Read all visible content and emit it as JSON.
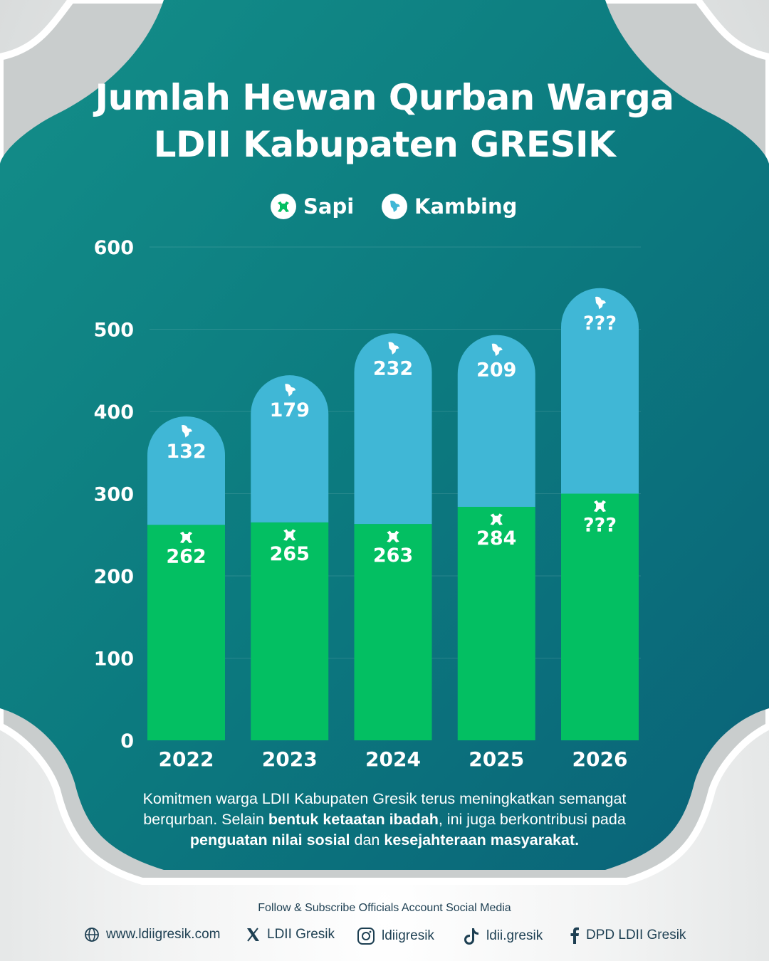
{
  "title_line1": "Jumlah Hewan Qurban Warga",
  "title_line2": "LDII Kabupaten GRESIK",
  "legend": {
    "sapi": "Sapi",
    "kambing": "Kambing"
  },
  "colors": {
    "background_teal": "#0e7a7f",
    "sapi": "#03bf62",
    "kambing": "#40b7d6",
    "text": "#ffffff"
  },
  "chart_data": {
    "type": "bar",
    "stacked": true,
    "title": "Jumlah Hewan Qurban Warga LDII Kabupaten GRESIK",
    "categories": [
      "2022",
      "2023",
      "2024",
      "2025",
      "2026"
    ],
    "series": [
      {
        "name": "Sapi",
        "values": [
          262,
          265,
          263,
          284,
          300
        ],
        "labels": [
          "262",
          "265",
          "263",
          "284",
          "???"
        ]
      },
      {
        "name": "Kambing",
        "values": [
          132,
          179,
          232,
          209,
          250
        ],
        "labels": [
          "132",
          "179",
          "232",
          "209",
          "???"
        ]
      }
    ],
    "yticks": [
      0,
      100,
      200,
      300,
      400,
      500,
      600
    ],
    "ylim": [
      0,
      600
    ],
    "xlabel": "",
    "ylabel": "",
    "grid": true,
    "legend_position": "top-center"
  },
  "description": {
    "p1": "Komitmen warga LDII Kabupaten Gresik terus meningkatkan semangat berqurban. Selain ",
    "b1": "bentuk ketaatan ibadah",
    "p2": ", ini juga berkontribusi pada ",
    "b2": "penguatan nilai sosial",
    "p3": " dan ",
    "b3": "kesejahteraan masyarakat."
  },
  "footer": {
    "follow": "Follow & Subscribe Officials Account Social Media",
    "website": "www.ldiigresik.com",
    "x": "LDII Gresik",
    "instagram": "ldiigresik",
    "tiktok": "ldii.gresik",
    "facebook": "DPD LDII Gresik"
  }
}
